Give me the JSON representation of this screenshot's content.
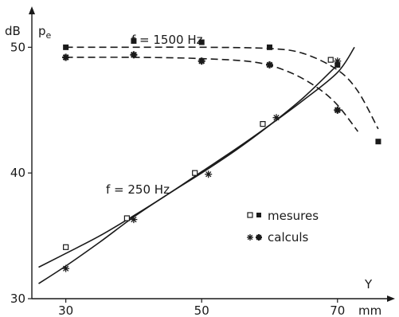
{
  "chart_data": {
    "type": "scatter",
    "title": "",
    "xlabel": "Y",
    "x_unit": "mm",
    "ylabel": "p",
    "ylabel_subscript": "e",
    "y_unit": "dB",
    "xlim": [
      25,
      78
    ],
    "ylim": [
      30,
      53
    ],
    "x_ticks": [
      30,
      50,
      70
    ],
    "y_ticks": [
      30,
      40,
      50
    ],
    "grid": false,
    "legend_position": "right",
    "legend": {
      "mesures": "mesures",
      "calculs": "calculs"
    },
    "annotations": {
      "f1500": "f = 1500 Hz",
      "f250": "f = 250 Hz"
    },
    "series": [
      {
        "group": "f1500",
        "kind": "mesures",
        "marker": "filled-square",
        "x": [
          30,
          40,
          50,
          60,
          70,
          76
        ],
        "y": [
          50.0,
          50.5,
          50.4,
          50.0,
          48.6,
          42.5
        ]
      },
      {
        "group": "f1500",
        "kind": "calculs",
        "marker": "filled-star",
        "x": [
          30,
          40,
          50,
          60,
          70
        ],
        "y": [
          49.2,
          49.4,
          48.9,
          48.6,
          45.0
        ]
      },
      {
        "group": "f250",
        "kind": "mesures",
        "marker": "open-square",
        "x": [
          30,
          39,
          49,
          59,
          69
        ],
        "y": [
          34.1,
          36.4,
          40.0,
          43.9,
          49.0
        ]
      },
      {
        "group": "f250",
        "kind": "calculs",
        "marker": "asterisk",
        "x": [
          30,
          40,
          51,
          61,
          70
        ],
        "y": [
          32.4,
          36.3,
          39.9,
          44.4,
          48.9
        ]
      }
    ],
    "curves": [
      {
        "group": "f1500",
        "kind": "mesures",
        "style": "dashed",
        "x": [
          30,
          40,
          50,
          60,
          65,
          70,
          73,
          76
        ],
        "y": [
          50.0,
          50.0,
          50.0,
          49.9,
          49.5,
          48.2,
          46.5,
          43.5
        ]
      },
      {
        "group": "f1500",
        "kind": "calculs",
        "style": "dashed",
        "x": [
          30,
          40,
          50,
          58,
          63,
          67,
          70,
          73
        ],
        "y": [
          49.2,
          49.2,
          49.1,
          48.8,
          48.0,
          46.8,
          45.4,
          43.3
        ]
      },
      {
        "group": "f250",
        "kind": "mesures",
        "style": "solid",
        "x": [
          26,
          30,
          35,
          40,
          45,
          50,
          55,
          60,
          65,
          70,
          72.5
        ],
        "y": [
          32.5,
          33.6,
          35.0,
          36.6,
          38.3,
          40.1,
          41.9,
          43.8,
          45.8,
          48.0,
          50.0
        ]
      },
      {
        "group": "f250",
        "kind": "calculs",
        "style": "solid",
        "x": [
          26,
          30,
          35,
          40,
          45,
          50,
          55,
          60,
          65,
          70
        ],
        "y": [
          31.2,
          32.6,
          34.5,
          36.5,
          38.3,
          40.0,
          41.8,
          43.8,
          46.0,
          48.6
        ]
      }
    ]
  }
}
